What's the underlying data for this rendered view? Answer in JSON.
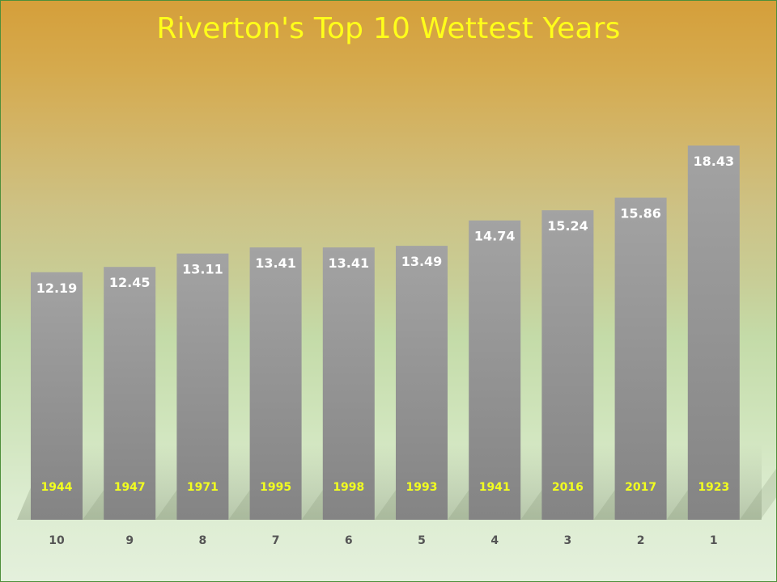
{
  "chart_data": {
    "type": "bar",
    "title": "Riverton's Top 10 Wettest Years",
    "categories": [
      "10",
      "9",
      "8",
      "7",
      "6",
      "5",
      "4",
      "3",
      "2",
      "1"
    ],
    "years": [
      "1944",
      "1947",
      "1971",
      "1995",
      "1998",
      "1993",
      "1941",
      "2016",
      "2017",
      "1923"
    ],
    "values": [
      12.19,
      12.45,
      13.11,
      13.41,
      13.41,
      13.49,
      14.74,
      15.24,
      15.86,
      18.43
    ],
    "value_labels": [
      "12.19",
      "12.45",
      "13.11",
      "13.41",
      "13.41",
      "13.49",
      "14.74",
      "15.24",
      "15.86",
      "18.43"
    ],
    "xlabel": "",
    "ylabel": "",
    "ylim": [
      0,
      20
    ],
    "grid": false,
    "legend": "none",
    "colors": {
      "title": "#ffff1a",
      "bar_top": "#a3a3a3",
      "bar_bottom": "#848484",
      "value_label": "#ffffff",
      "year_label": "#f2ff1f",
      "tick_label": "#555555",
      "background_top": "#d59f3a",
      "background_bottom": "#e4f0dc",
      "border": "#4e8f3a"
    }
  }
}
